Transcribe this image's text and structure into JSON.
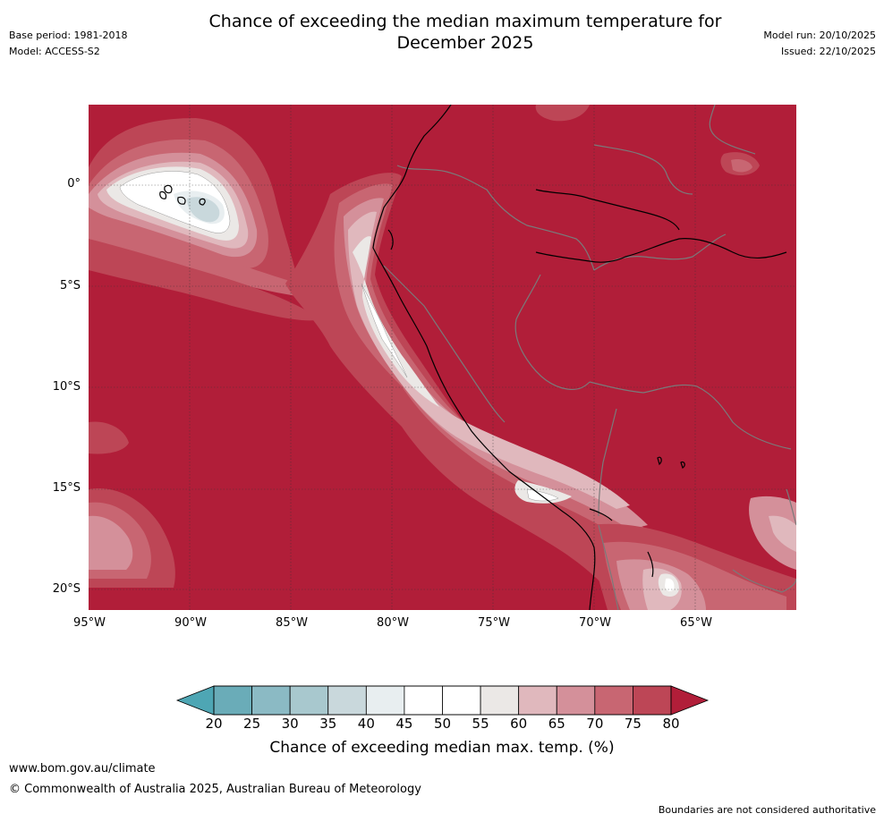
{
  "title_line1": "Chance of exceeding the median maximum temperature for",
  "title_line2": "December 2025",
  "base_period": "Base period: 1981-2018",
  "model": "Model: ACCESS-S2",
  "model_run": "Model run: 20/10/2025",
  "issued": "Issued: 22/10/2025",
  "lat_labels": [
    "0°",
    "5°S",
    "10°S",
    "15°S",
    "20°S"
  ],
  "lon_labels": [
    "95°W",
    "90°W",
    "85°W",
    "80°W",
    "75°W",
    "70°W",
    "65°W"
  ],
  "colorbar": {
    "label": "Chance of exceeding median max. temp. (%)",
    "ticks": [
      "20",
      "25",
      "30",
      "35",
      "40",
      "45",
      "50",
      "55",
      "60",
      "65",
      "70",
      "75",
      "80"
    ],
    "colors": [
      "#6aacb8",
      "#8bbac4",
      "#a8c8ce",
      "#c9d8dc",
      "#e8eef0",
      "#ffffff",
      "#ffffff",
      "#ebe8e6",
      "#e0b8bd",
      "#d4909a",
      "#c86672",
      "#bd4656"
    ],
    "over_color": "#b11e39",
    "under_color": "#4ea6b4"
  },
  "footer": {
    "website": "www.bom.gov.au/climate",
    "copyright": "© Commonwealth of Australia 2025, Australian Bureau of Meteorology",
    "disclaimer": "Boundaries are not considered authoritative"
  }
}
